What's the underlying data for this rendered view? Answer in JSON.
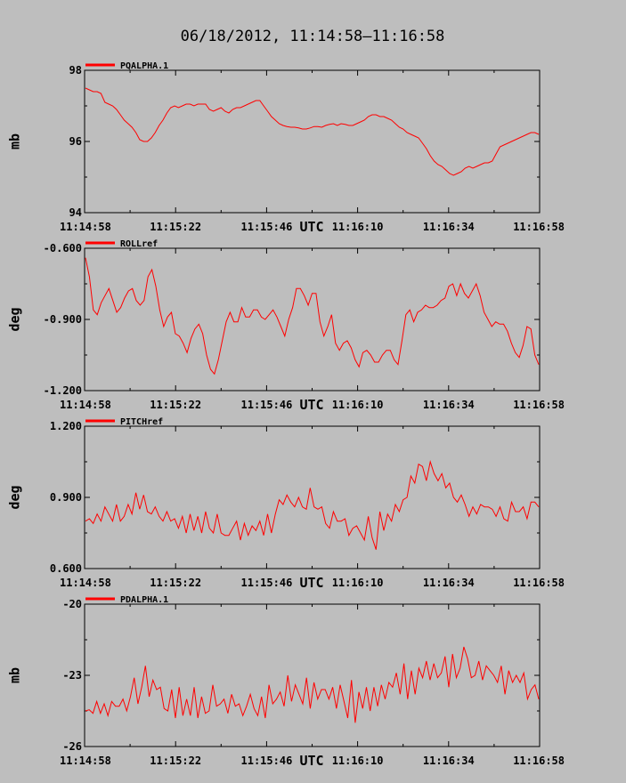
{
  "page": {
    "title": "06/18/2012, 11:14:58–11:16:58"
  },
  "colors": {
    "background": "#bebebe",
    "line": "#ff0000",
    "frame": "#000000"
  },
  "chart_data": [
    {
      "type": "line",
      "legend": "PQALPHA.1",
      "ylabel": "mb",
      "xlabel": "UTC",
      "ylim": [
        94,
        98
      ],
      "yticks": [
        "98",
        "96",
        "94"
      ],
      "xlim": [
        "11:14:58",
        "11:16:58"
      ],
      "xticks": [
        "11:14:58",
        "11:15:22",
        "11:15:46",
        "11:16:10",
        "11:16:34",
        "11:16:58"
      ],
      "grid": false,
      "x_step_seconds": 1,
      "values": [
        97.5,
        97.45,
        97.4,
        97.4,
        97.35,
        97.1,
        97.05,
        97.0,
        96.9,
        96.75,
        96.6,
        96.5,
        96.4,
        96.25,
        96.05,
        96.0,
        96.0,
        96.1,
        96.25,
        96.45,
        96.6,
        96.8,
        96.95,
        97.0,
        96.95,
        97.0,
        97.05,
        97.05,
        97.0,
        97.05,
        97.05,
        97.05,
        96.9,
        96.85,
        96.9,
        96.95,
        96.85,
        96.8,
        96.9,
        96.95,
        96.95,
        97.0,
        97.05,
        97.1,
        97.15,
        97.15,
        97.0,
        96.85,
        96.7,
        96.6,
        96.5,
        96.45,
        96.42,
        96.4,
        96.4,
        96.38,
        96.35,
        96.35,
        96.38,
        96.42,
        96.42,
        96.4,
        96.45,
        96.48,
        96.5,
        96.45,
        96.5,
        96.48,
        96.45,
        96.45,
        96.5,
        96.55,
        96.6,
        96.7,
        96.75,
        96.75,
        96.7,
        96.7,
        96.65,
        96.6,
        96.5,
        96.4,
        96.35,
        96.25,
        96.2,
        96.15,
        96.1,
        95.95,
        95.8,
        95.6,
        95.45,
        95.35,
        95.3,
        95.2,
        95.1,
        95.05,
        95.1,
        95.15,
        95.25,
        95.3,
        95.25,
        95.3,
        95.35,
        95.4,
        95.4,
        95.45,
        95.65,
        95.85,
        95.9,
        95.95,
        96.0,
        96.05,
        96.1,
        96.15,
        96.2,
        96.25,
        96.25,
        96.2
      ]
    },
    {
      "type": "line",
      "legend": "ROLLref",
      "ylabel": "deg",
      "xlabel": "UTC",
      "ylim": [
        -1.2,
        -0.6
      ],
      "yticks": [
        "-0.600",
        "-0.900",
        "-1.200"
      ],
      "xlim": [
        "11:14:58",
        "11:16:58"
      ],
      "xticks": [
        "11:14:58",
        "11:15:22",
        "11:15:46",
        "11:16:10",
        "11:16:34",
        "11:16:58"
      ],
      "grid": false,
      "x_step_seconds": 1,
      "values": [
        -0.64,
        -0.72,
        -0.86,
        -0.88,
        -0.83,
        -0.8,
        -0.77,
        -0.82,
        -0.87,
        -0.85,
        -0.81,
        -0.78,
        -0.77,
        -0.82,
        -0.84,
        -0.82,
        -0.72,
        -0.69,
        -0.76,
        -0.86,
        -0.93,
        -0.89,
        -0.87,
        -0.96,
        -0.97,
        -1.0,
        -1.04,
        -0.98,
        -0.94,
        -0.92,
        -0.96,
        -1.05,
        -1.11,
        -1.13,
        -1.07,
        -0.99,
        -0.91,
        -0.87,
        -0.91,
        -0.91,
        -0.85,
        -0.89,
        -0.89,
        -0.86,
        -0.86,
        -0.89,
        -0.9,
        -0.88,
        -0.86,
        -0.89,
        -0.93,
        -0.97,
        -0.9,
        -0.85,
        -0.77,
        -0.77,
        -0.8,
        -0.84,
        -0.79,
        -0.79,
        -0.91,
        -0.97,
        -0.93,
        -0.88,
        -1.0,
        -1.03,
        -1.0,
        -0.99,
        -1.02,
        -1.07,
        -1.1,
        -1.04,
        -1.03,
        -1.05,
        -1.08,
        -1.08,
        -1.05,
        -1.03,
        -1.03,
        -1.07,
        -1.09,
        -0.99,
        -0.88,
        -0.86,
        -0.91,
        -0.87,
        -0.86,
        -0.84,
        -0.85,
        -0.85,
        -0.84,
        -0.82,
        -0.81,
        -0.76,
        -0.75,
        -0.8,
        -0.75,
        -0.79,
        -0.81,
        -0.78,
        -0.75,
        -0.8,
        -0.87,
        -0.9,
        -0.93,
        -0.91,
        -0.92,
        -0.92,
        -0.95,
        -1.0,
        -1.04,
        -1.06,
        -1.01,
        -0.93,
        -0.94,
        -1.05,
        -1.09
      ]
    },
    {
      "type": "line",
      "legend": "PITCHref",
      "ylabel": "deg",
      "xlabel": "UTC",
      "ylim": [
        0.6,
        1.2
      ],
      "yticks": [
        "1.200",
        "0.900",
        "0.600"
      ],
      "xlim": [
        "11:14:58",
        "11:16:58"
      ],
      "xticks": [
        "11:14:58",
        "11:15:22",
        "11:15:46",
        "11:16:10",
        "11:16:34",
        "11:16:58"
      ],
      "grid": false,
      "x_step_seconds": 1,
      "values": [
        0.8,
        0.81,
        0.79,
        0.83,
        0.8,
        0.86,
        0.83,
        0.8,
        0.87,
        0.8,
        0.82,
        0.87,
        0.83,
        0.92,
        0.85,
        0.91,
        0.84,
        0.83,
        0.86,
        0.82,
        0.8,
        0.84,
        0.8,
        0.81,
        0.77,
        0.82,
        0.75,
        0.83,
        0.76,
        0.82,
        0.75,
        0.84,
        0.77,
        0.75,
        0.83,
        0.75,
        0.74,
        0.74,
        0.77,
        0.8,
        0.72,
        0.79,
        0.74,
        0.78,
        0.76,
        0.8,
        0.74,
        0.83,
        0.75,
        0.83,
        0.89,
        0.87,
        0.91,
        0.88,
        0.86,
        0.9,
        0.86,
        0.85,
        0.94,
        0.86,
        0.85,
        0.86,
        0.79,
        0.77,
        0.84,
        0.8,
        0.8,
        0.81,
        0.74,
        0.77,
        0.78,
        0.75,
        0.72,
        0.82,
        0.73,
        0.68,
        0.84,
        0.76,
        0.83,
        0.8,
        0.87,
        0.84,
        0.89,
        0.9,
        0.99,
        0.96,
        1.04,
        1.03,
        0.97,
        1.05,
        1.0,
        0.97,
        1.0,
        0.94,
        0.96,
        0.9,
        0.88,
        0.91,
        0.87,
        0.82,
        0.86,
        0.83,
        0.87,
        0.86,
        0.86,
        0.85,
        0.82,
        0.86,
        0.81,
        0.8,
        0.88,
        0.84,
        0.84,
        0.86,
        0.81,
        0.88,
        0.88,
        0.86
      ]
    },
    {
      "type": "line",
      "legend": "PDALPHA.1",
      "ylabel": "mb",
      "xlabel": "UTC",
      "ylim": [
        -26,
        -20
      ],
      "yticks": [
        "-20",
        "-23",
        "-26"
      ],
      "xlim": [
        "11:14:58",
        "11:16:58"
      ],
      "xticks": [
        "11:14:58",
        "11:15:22",
        "11:15:46",
        "11:16:10",
        "11:16:34",
        "11:16:58"
      ],
      "grid": false,
      "x_step_seconds": 1,
      "values": [
        -24.5,
        -24.45,
        -24.6,
        -24.1,
        -24.6,
        -24.2,
        -24.7,
        -24.1,
        -24.3,
        -24.3,
        -24.0,
        -24.5,
        -23.9,
        -23.1,
        -24.2,
        -23.5,
        -22.6,
        -23.9,
        -23.2,
        -23.6,
        -23.5,
        -24.4,
        -24.5,
        -23.6,
        -24.8,
        -23.5,
        -24.7,
        -24.0,
        -24.7,
        -23.5,
        -24.8,
        -23.9,
        -24.6,
        -24.5,
        -23.4,
        -24.3,
        -24.2,
        -24.0,
        -24.6,
        -23.8,
        -24.3,
        -24.2,
        -24.7,
        -24.3,
        -23.8,
        -24.4,
        -24.7,
        -23.9,
        -24.8,
        -23.4,
        -24.2,
        -24.0,
        -23.7,
        -24.3,
        -23.0,
        -24.1,
        -23.4,
        -23.8,
        -24.2,
        -23.1,
        -24.4,
        -23.3,
        -24.0,
        -23.6,
        -23.6,
        -24.0,
        -23.5,
        -24.4,
        -23.4,
        -24.1,
        -24.8,
        -23.2,
        -25.0,
        -23.7,
        -24.4,
        -23.5,
        -24.5,
        -23.5,
        -24.3,
        -23.4,
        -24.0,
        -23.3,
        -23.5,
        -22.9,
        -23.8,
        -22.5,
        -24.0,
        -22.8,
        -23.8,
        -22.7,
        -23.1,
        -22.4,
        -23.2,
        -22.5,
        -23.1,
        -22.9,
        -22.2,
        -23.5,
        -22.1,
        -23.1,
        -22.7,
        -21.8,
        -22.3,
        -23.1,
        -23.0,
        -22.4,
        -23.2,
        -22.6,
        -22.8,
        -23.0,
        -23.3,
        -22.6,
        -23.8,
        -22.8,
        -23.3,
        -23.0,
        -23.3,
        -22.9,
        -24.0,
        -23.6,
        -23.4,
        -24.0
      ]
    }
  ]
}
